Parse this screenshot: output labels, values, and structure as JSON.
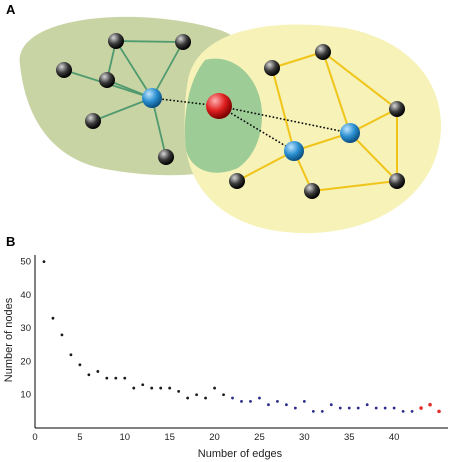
{
  "panels": {
    "a_label": "A",
    "b_label": "B"
  },
  "network": {
    "colors": {
      "left_region": "#c9d4a4",
      "right_region": "#f6f2b8",
      "overlap_region": "#7fbf8c",
      "left_edges": "#4f9a6f",
      "right_edges": "#f0c419",
      "hub_node": "#2a8fd0",
      "bridge_node": "#e02020",
      "leaf_node": "#3a3a3a",
      "bridge_links": "#111111"
    }
  },
  "chart_data": {
    "type": "scatter",
    "title": "",
    "xlabel": "Number of edges",
    "ylabel": "Number of nodes",
    "xlim": [
      0,
      46
    ],
    "ylim": [
      0,
      52
    ],
    "xticks": [
      0,
      5,
      10,
      15,
      20,
      25,
      30,
      35,
      40
    ],
    "yticks": [
      10,
      20,
      30,
      40,
      50
    ],
    "grid": false,
    "series": [
      {
        "color": "#1a1a1a",
        "x": [
          1,
          2,
          3,
          4,
          5,
          6,
          7,
          8,
          9,
          10,
          11,
          12,
          13,
          14,
          15,
          16,
          17,
          18,
          19,
          20,
          21
        ],
        "y": [
          50,
          33,
          28,
          22,
          19,
          16,
          17,
          15,
          15,
          15,
          12,
          13,
          12,
          12,
          12,
          11,
          9,
          10,
          9,
          12,
          10
        ]
      },
      {
        "color": "#2c2c8c",
        "x": [
          22,
          23,
          24,
          25,
          26,
          27,
          28,
          29,
          30,
          31,
          32,
          33,
          34,
          35,
          36,
          37,
          38,
          39,
          40,
          41,
          42
        ],
        "y": [
          9,
          8,
          8,
          9,
          7,
          8,
          7,
          6,
          8,
          5,
          5,
          7,
          6,
          6,
          6,
          7,
          6,
          6,
          6,
          5,
          5
        ]
      },
      {
        "color": "#e03030",
        "x": [
          43,
          44,
          45
        ],
        "y": [
          6,
          7,
          5
        ]
      }
    ]
  }
}
